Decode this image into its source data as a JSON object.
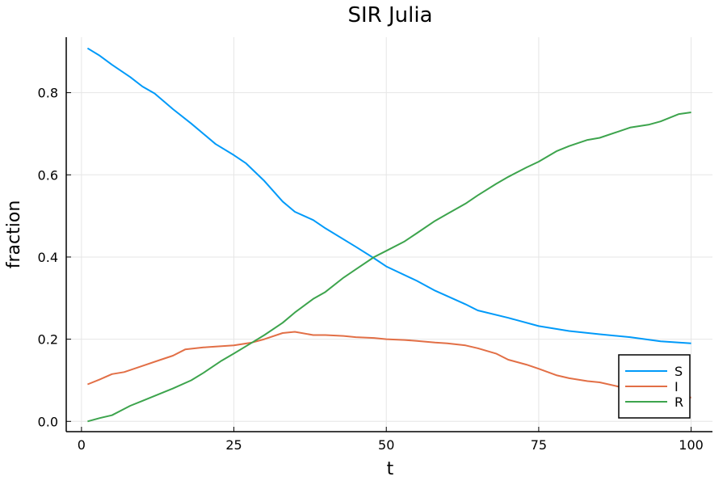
{
  "chart_data": {
    "type": "line",
    "title": "SIR Julia",
    "xlabel": "t",
    "ylabel": "fraction",
    "xlim": [
      -2.5,
      103.5
    ],
    "ylim": [
      -0.025,
      0.935
    ],
    "xticks": [
      0,
      25,
      50,
      75,
      100
    ],
    "xtick_labels": [
      "0",
      "25",
      "50",
      "75",
      "100"
    ],
    "yticks": [
      0.0,
      0.2,
      0.4,
      0.6,
      0.8
    ],
    "ytick_labels": [
      "0.0",
      "0.2",
      "0.4",
      "0.6",
      "0.8"
    ],
    "grid": true,
    "legend_position": "bottom-right",
    "series": [
      {
        "name": "S",
        "color": "#009AF9",
        "x": [
          1,
          3,
          5,
          8,
          10,
          12,
          15,
          18,
          20,
          22,
          25,
          27,
          30,
          33,
          35,
          38,
          40,
          45,
          48,
          50,
          55,
          58,
          60,
          63,
          65,
          70,
          75,
          80,
          85,
          90,
          95,
          100
        ],
        "y": [
          0.908,
          0.89,
          0.868,
          0.838,
          0.815,
          0.798,
          0.76,
          0.725,
          0.7,
          0.675,
          0.648,
          0.628,
          0.585,
          0.535,
          0.51,
          0.49,
          0.47,
          0.425,
          0.397,
          0.377,
          0.342,
          0.318,
          0.305,
          0.285,
          0.27,
          0.252,
          0.232,
          0.22,
          0.212,
          0.205,
          0.195,
          0.19
        ]
      },
      {
        "name": "I",
        "color": "#E26F46",
        "x": [
          1,
          3,
          5,
          7,
          10,
          13,
          15,
          17,
          20,
          22,
          25,
          28,
          30,
          33,
          35,
          38,
          40,
          43,
          45,
          48,
          50,
          53,
          55,
          58,
          60,
          63,
          65,
          68,
          70,
          73,
          75,
          78,
          80,
          83,
          85,
          88,
          90,
          93,
          95,
          98,
          100
        ],
        "y": [
          0.09,
          0.102,
          0.115,
          0.12,
          0.135,
          0.15,
          0.16,
          0.175,
          0.18,
          0.182,
          0.185,
          0.192,
          0.2,
          0.215,
          0.218,
          0.21,
          0.21,
          0.208,
          0.205,
          0.203,
          0.2,
          0.198,
          0.196,
          0.192,
          0.19,
          0.185,
          0.178,
          0.165,
          0.15,
          0.138,
          0.128,
          0.112,
          0.105,
          0.098,
          0.095,
          0.085,
          0.078,
          0.068,
          0.065,
          0.058,
          0.058
        ]
      },
      {
        "name": "R",
        "color": "#3DA44D",
        "x": [
          1,
          3,
          5,
          8,
          10,
          13,
          15,
          18,
          20,
          23,
          25,
          28,
          30,
          33,
          35,
          38,
          40,
          43,
          45,
          48,
          50,
          53,
          55,
          58,
          60,
          63,
          65,
          68,
          70,
          73,
          75,
          78,
          80,
          83,
          85,
          88,
          90,
          93,
          95,
          98,
          100
        ],
        "y": [
          0.0,
          0.008,
          0.015,
          0.038,
          0.05,
          0.068,
          0.08,
          0.1,
          0.118,
          0.148,
          0.165,
          0.192,
          0.21,
          0.24,
          0.265,
          0.298,
          0.315,
          0.35,
          0.37,
          0.4,
          0.415,
          0.438,
          0.458,
          0.488,
          0.505,
          0.53,
          0.55,
          0.578,
          0.595,
          0.618,
          0.632,
          0.658,
          0.67,
          0.685,
          0.69,
          0.705,
          0.715,
          0.722,
          0.73,
          0.748,
          0.752
        ]
      }
    ]
  }
}
